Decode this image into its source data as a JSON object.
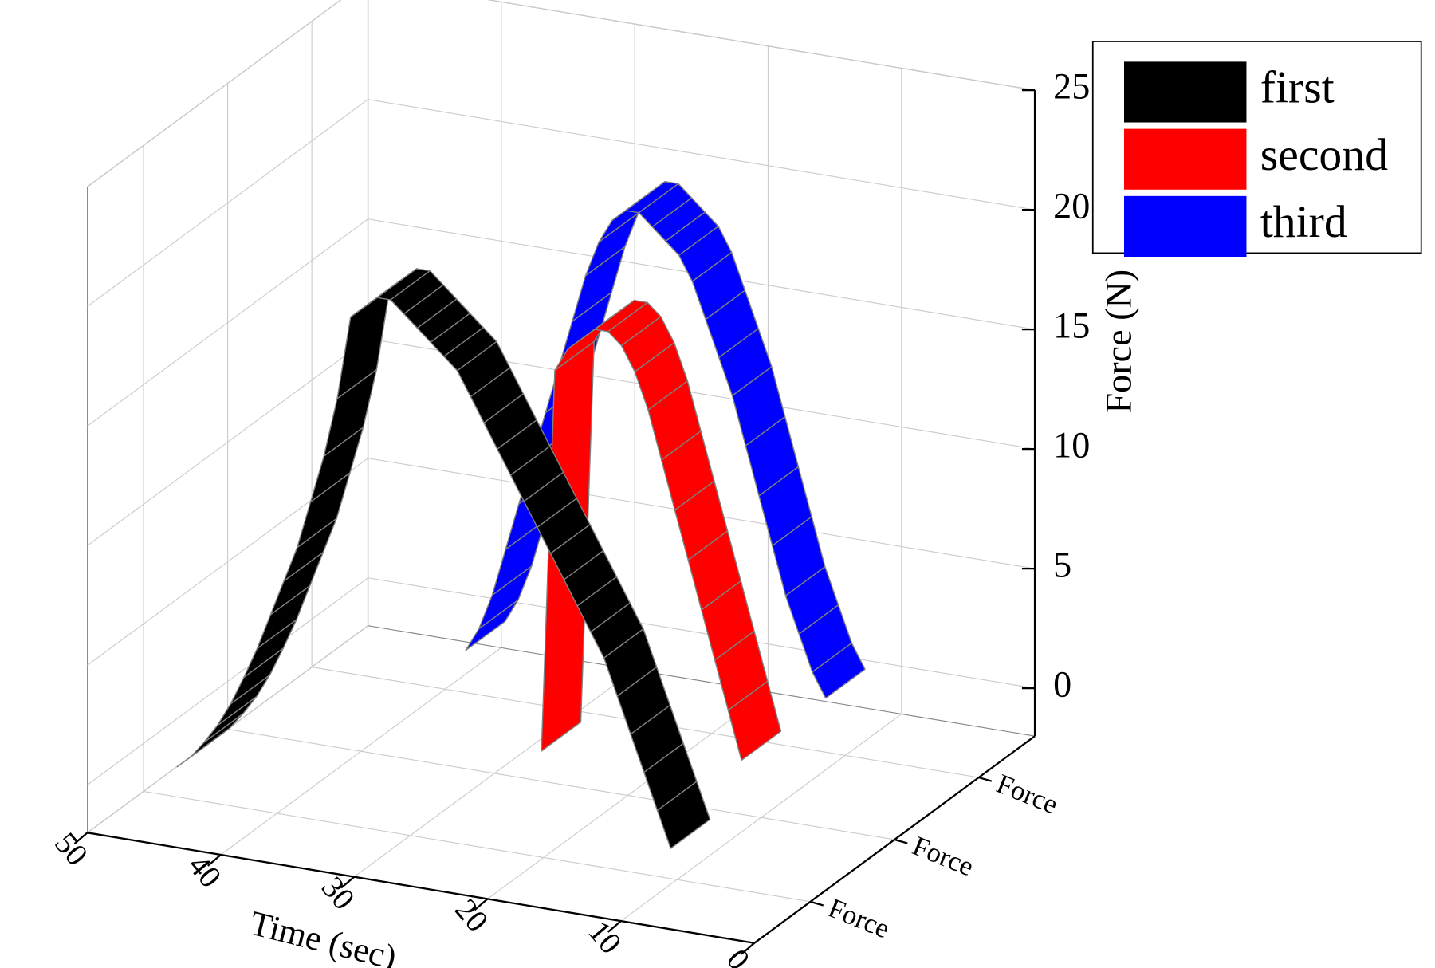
{
  "chart_data": {
    "type": "ribbon3d",
    "x_label": "Time (sec)",
    "y_label": "Force (N)",
    "x": [
      0,
      1,
      2,
      3,
      4,
      5,
      6,
      7,
      8,
      9,
      10,
      11,
      12,
      13,
      14,
      15,
      16,
      17,
      18,
      19,
      20,
      21,
      22,
      23,
      24,
      25,
      26,
      27,
      28,
      29,
      30,
      31,
      32,
      33,
      34,
      35,
      36,
      37,
      38,
      39,
      40,
      41,
      42,
      43,
      44,
      45,
      46,
      47,
      48,
      49,
      50
    ],
    "xlim": [
      0,
      50
    ],
    "xticks": [
      0,
      10,
      20,
      30,
      40,
      50
    ],
    "ylim": [
      -2,
      25
    ],
    "yticks": [
      0,
      5,
      10,
      15,
      20,
      25
    ],
    "depth_categories": [
      "Force",
      "Force",
      "Force"
    ],
    "grid": true,
    "legend": "upper right",
    "series": [
      {
        "name": "first",
        "color": "#000000",
        "values": [
          null,
          null,
          null,
          null,
          null,
          null,
          null,
          null,
          null,
          0,
          1.5,
          3,
          4.5,
          6,
          7.5,
          8.5,
          9.5,
          10.5,
          11.5,
          12.5,
          13.5,
          14.5,
          15.5,
          16.5,
          17.5,
          18.5,
          19,
          19.5,
          20,
          20.5,
          21,
          21,
          20.5,
          20,
          16.5,
          14,
          12,
          10,
          8.5,
          7,
          5.5,
          4.2,
          3,
          2,
          1.2,
          0.5,
          0,
          null,
          null,
          null,
          null
        ]
      },
      {
        "name": "second",
        "color": "#ff0000",
        "values": [
          null,
          null,
          null,
          null,
          null,
          null,
          null,
          null,
          null,
          null,
          1,
          3,
          5,
          7,
          9,
          11,
          13,
          15,
          16.5,
          17.5,
          18,
          18,
          17.5,
          17,
          16,
          0,
          null,
          null,
          null,
          null,
          null,
          null,
          null,
          null,
          null,
          null,
          null,
          null,
          null,
          null,
          null,
          null,
          null,
          null,
          null,
          null,
          null,
          null,
          null,
          null,
          null
        ]
      },
      {
        "name": "third",
        "color": "#0000ff",
        "values": [
          null,
          null,
          null,
          null,
          null,
          null,
          null,
          null,
          null,
          null,
          1,
          2,
          3.5,
          5,
          7,
          9,
          11,
          13,
          14.5,
          16,
          17.5,
          18.5,
          19,
          19.5,
          20,
          20,
          19.5,
          18.5,
          17,
          15,
          13,
          11,
          9,
          7,
          5,
          3,
          1.5,
          0.5,
          null,
          null,
          null,
          null,
          null,
          null,
          null,
          null,
          null,
          null,
          null,
          null,
          null
        ]
      }
    ]
  }
}
